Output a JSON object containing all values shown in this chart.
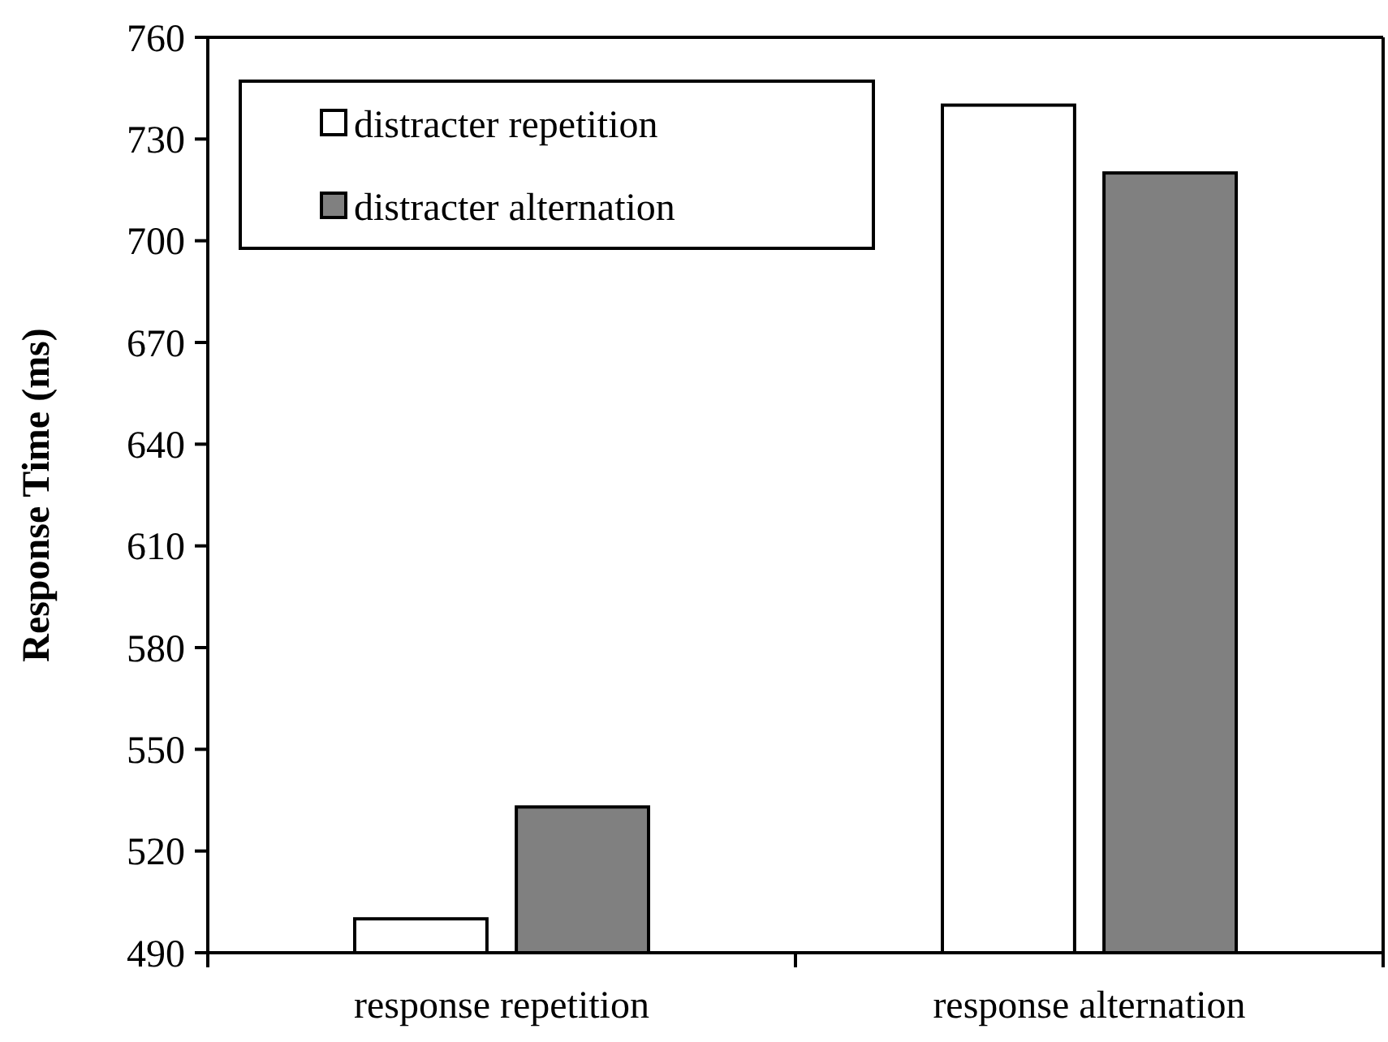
{
  "chart_data": {
    "type": "bar",
    "ylabel": "Response Time (ms)",
    "categories": [
      "response repetition",
      "response alternation"
    ],
    "series": [
      {
        "name": "distracter repetition",
        "color": "#ffffff",
        "values": [
          500,
          740
        ]
      },
      {
        "name": "distracter alternation",
        "color": "#808080",
        "values": [
          533,
          720
        ]
      }
    ],
    "ylim": [
      490,
      760
    ],
    "yticks": [
      490,
      520,
      550,
      580,
      610,
      640,
      670,
      700,
      730,
      760
    ],
    "grid": false,
    "legend": "top left"
  }
}
